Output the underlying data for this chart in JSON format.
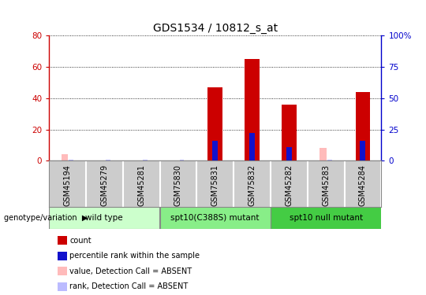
{
  "title": "GDS1534 / 10812_s_at",
  "samples": [
    "GSM45194",
    "GSM45279",
    "GSM45281",
    "GSM75830",
    "GSM75831",
    "GSM75832",
    "GSM45282",
    "GSM45283",
    "GSM45284"
  ],
  "count_values": [
    0,
    0,
    0,
    0,
    47,
    65,
    36,
    0,
    44
  ],
  "rank_values": [
    0,
    0,
    0,
    0,
    16,
    22,
    11,
    0,
    16
  ],
  "absent_value_values": [
    4,
    0,
    0,
    0,
    0,
    0,
    0,
    8,
    0
  ],
  "absent_rank_values": [
    1,
    1,
    1,
    1,
    0,
    0,
    0,
    1,
    0
  ],
  "groups": [
    {
      "label": "wild type",
      "start": 0,
      "end": 2,
      "color": "#ccffcc"
    },
    {
      "label": "spt10(C388S) mutant",
      "start": 3,
      "end": 5,
      "color": "#88ee88"
    },
    {
      "label": "spt10 null mutant",
      "start": 6,
      "end": 8,
      "color": "#44cc44"
    }
  ],
  "ylim_left": [
    0,
    80
  ],
  "ylim_right": [
    0,
    100
  ],
  "yticks_left": [
    0,
    20,
    40,
    60,
    80
  ],
  "yticks_right": [
    0,
    25,
    50,
    75,
    100
  ],
  "ytick_labels_right": [
    "0",
    "25",
    "50",
    "75",
    "100%"
  ],
  "bar_color_count": "#cc0000",
  "bar_color_rank": "#1111cc",
  "bar_color_absent_value": "#ffbbbb",
  "bar_color_absent_rank": "#bbbbff",
  "left_tick_color": "#cc0000",
  "right_tick_color": "#0000cc",
  "background_color": "#ffffff",
  "tick_area_color": "#cccccc",
  "legend_items": [
    {
      "label": "count",
      "color": "#cc0000"
    },
    {
      "label": "percentile rank within the sample",
      "color": "#1111cc"
    },
    {
      "label": "value, Detection Call = ABSENT",
      "color": "#ffbbbb"
    },
    {
      "label": "rank, Detection Call = ABSENT",
      "color": "#bbbbff"
    }
  ]
}
